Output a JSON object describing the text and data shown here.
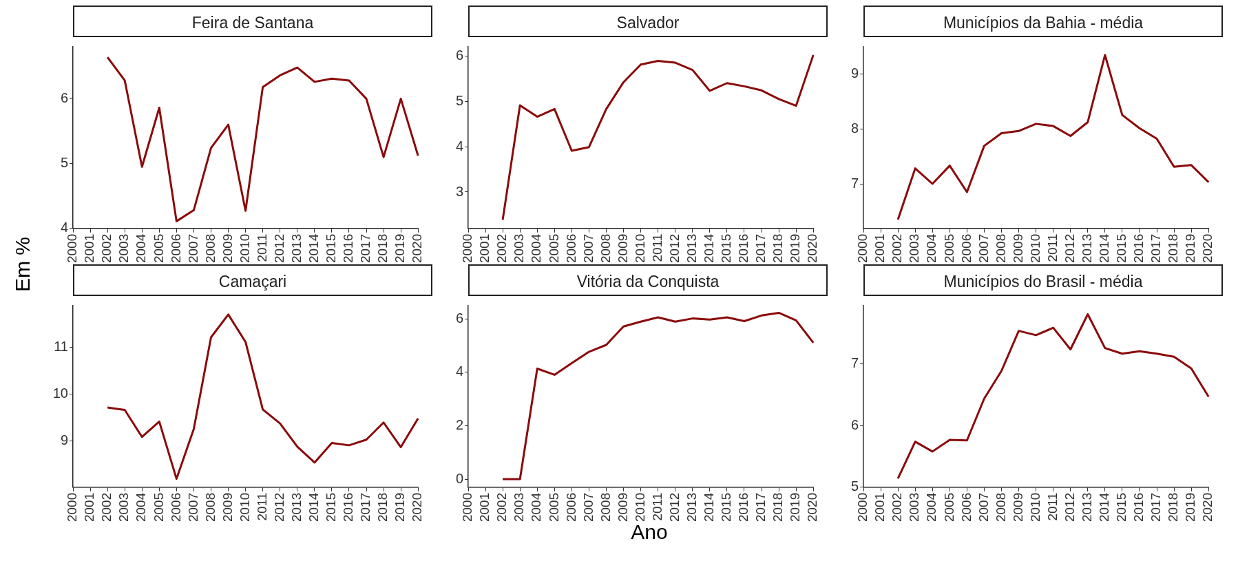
{
  "chart_data": [
    {
      "type": "line",
      "title": "Feira de Santana",
      "ylabel": "Em %",
      "categories": [
        "2000",
        "2001",
        "2002",
        "2003",
        "2004",
        "2005",
        "2006",
        "2007",
        "2008",
        "2009",
        "2010",
        "2011",
        "2012",
        "2013",
        "2014",
        "2015",
        "2016",
        "2017",
        "2018",
        "2019",
        "2020"
      ],
      "color": "#8b0a0a",
      "values": [
        null,
        null,
        6.64,
        6.28,
        4.95,
        5.86,
        4.11,
        4.28,
        5.24,
        5.6,
        4.27,
        6.18,
        6.36,
        6.48,
        6.26,
        6.31,
        6.28,
        6.0,
        5.1,
        6.0,
        5.12
      ],
      "ylim": [
        4,
        6.8
      ],
      "yticks": [
        4,
        5,
        6
      ]
    },
    {
      "type": "line",
      "title": "Salvador",
      "categories": [
        "2000",
        "2001",
        "2002",
        "2003",
        "2004",
        "2005",
        "2006",
        "2007",
        "2008",
        "2009",
        "2010",
        "2011",
        "2012",
        "2013",
        "2014",
        "2015",
        "2016",
        "2017",
        "2018",
        "2019",
        "2020"
      ],
      "color": "#8b0a0a",
      "values": [
        null,
        null,
        2.39,
        4.91,
        4.66,
        4.83,
        3.91,
        3.99,
        4.83,
        5.42,
        5.81,
        5.89,
        5.85,
        5.69,
        5.23,
        5.4,
        5.33,
        5.24,
        5.05,
        4.9,
        6.02
      ],
      "ylim": [
        2.2,
        6.2
      ],
      "yticks": [
        3,
        4,
        5,
        6
      ]
    },
    {
      "type": "line",
      "title": "Municípios da Bahia - média",
      "categories": [
        "2000",
        "2001",
        "2002",
        "2003",
        "2004",
        "2005",
        "2006",
        "2007",
        "2008",
        "2009",
        "2010",
        "2011",
        "2012",
        "2013",
        "2014",
        "2015",
        "2016",
        "2017",
        "2018",
        "2019",
        "2020"
      ],
      "color": "#8b0a0a",
      "values": [
        null,
        null,
        6.36,
        7.29,
        7.01,
        7.34,
        6.86,
        7.7,
        7.93,
        7.97,
        8.1,
        8.06,
        7.88,
        8.13,
        9.35,
        8.26,
        8.02,
        7.83,
        7.32,
        7.35,
        7.04
      ],
      "ylim": [
        6.2,
        9.5
      ],
      "yticks": [
        7,
        8,
        9
      ]
    },
    {
      "type": "line",
      "title": "Camaçari",
      "categories": [
        "2000",
        "2001",
        "2002",
        "2003",
        "2004",
        "2005",
        "2006",
        "2007",
        "2008",
        "2009",
        "2010",
        "2011",
        "2012",
        "2013",
        "2014",
        "2015",
        "2016",
        "2017",
        "2018",
        "2019",
        "2020"
      ],
      "color": "#8b0a0a",
      "values": [
        null,
        null,
        9.71,
        9.66,
        9.08,
        9.41,
        8.18,
        9.25,
        11.22,
        11.71,
        11.12,
        9.67,
        9.37,
        8.87,
        8.53,
        8.95,
        8.9,
        9.02,
        9.39,
        8.86,
        9.48
      ],
      "ylim": [
        8,
        11.9
      ],
      "yticks": [
        9,
        10,
        11
      ]
    },
    {
      "type": "line",
      "title": "Vitória da Conquista",
      "xlabel": "Ano",
      "categories": [
        "2000",
        "2001",
        "2002",
        "2003",
        "2004",
        "2005",
        "2006",
        "2007",
        "2008",
        "2009",
        "2010",
        "2011",
        "2012",
        "2013",
        "2014",
        "2015",
        "2016",
        "2017",
        "2018",
        "2019",
        "2020"
      ],
      "color": "#8b0a0a",
      "values": [
        null,
        null,
        0,
        0,
        4.14,
        3.91,
        4.35,
        4.77,
        5.03,
        5.72,
        5.9,
        6.06,
        5.9,
        6.02,
        5.98,
        6.06,
        5.92,
        6.13,
        6.23,
        5.95,
        5.11
      ],
      "ylim": [
        -0.3,
        6.5
      ],
      "yticks": [
        0,
        2,
        4,
        6
      ]
    },
    {
      "type": "line",
      "title": "Municípios do Brasil - média",
      "categories": [
        "2000",
        "2001",
        "2002",
        "2003",
        "2004",
        "2005",
        "2006",
        "2007",
        "2008",
        "2009",
        "2010",
        "2011",
        "2012",
        "2013",
        "2014",
        "2015",
        "2016",
        "2017",
        "2018",
        "2019",
        "2020"
      ],
      "color": "#8b0a0a",
      "values": [
        null,
        null,
        5.14,
        5.74,
        5.58,
        5.77,
        5.76,
        6.44,
        6.89,
        7.54,
        7.47,
        7.59,
        7.24,
        7.81,
        7.26,
        7.17,
        7.21,
        7.17,
        7.12,
        6.93,
        6.47
      ],
      "ylim": [
        5,
        7.95
      ],
      "yticks": [
        5,
        6,
        7
      ]
    }
  ]
}
